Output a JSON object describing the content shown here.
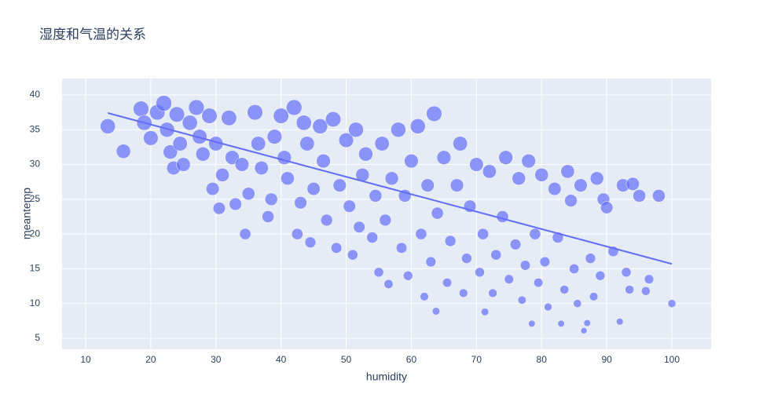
{
  "chart_data": {
    "type": "scatter",
    "title": "湿度和气温的关系",
    "x_label": "humidity",
    "y_label": "meantemp",
    "xlim": [
      6.38,
      106.03
    ],
    "ylim": [
      3.42,
      42.37
    ],
    "xticks": [
      10,
      20,
      30,
      40,
      50,
      60,
      70,
      80,
      90,
      100
    ],
    "yticks": [
      5,
      10,
      15,
      20,
      25,
      30,
      35,
      40
    ],
    "grid": true,
    "series": [
      {
        "type": "scatter",
        "color": "#636efa",
        "x": [
          13.4,
          15.8,
          18.5,
          19,
          20,
          21,
          22,
          22.5,
          23,
          23.5,
          24,
          24.5,
          25,
          26,
          27,
          27.5,
          28,
          29,
          29.5,
          30,
          30.5,
          31,
          32,
          32.5,
          33,
          34,
          34.5,
          35,
          36,
          36.5,
          37,
          38,
          38.5,
          39,
          40,
          40.5,
          41,
          42,
          42.5,
          43,
          43.5,
          44,
          44.5,
          45,
          46,
          46.5,
          47,
          48,
          48.5,
          49,
          50,
          50.5,
          51,
          51.5,
          52,
          52.5,
          53,
          54,
          54.5,
          55,
          55.5,
          56,
          56.5,
          57,
          58,
          58.5,
          59,
          59.5,
          60,
          61,
          61.5,
          62,
          62.5,
          63,
          63.5,
          63.8,
          64,
          65,
          65.5,
          66,
          67,
          67.5,
          68,
          68.5,
          69,
          70,
          70.5,
          71,
          71.3,
          72,
          72.5,
          73,
          74,
          74.5,
          75,
          76,
          76.5,
          77,
          77.5,
          78,
          78.5,
          79,
          79.5,
          80,
          80.5,
          81,
          82,
          82.5,
          83,
          83.5,
          84,
          84.5,
          85,
          85.5,
          86,
          86.5,
          87,
          87.5,
          88,
          88.5,
          89,
          89.5,
          90,
          91,
          92,
          92.5,
          93,
          93.5,
          94,
          95,
          96,
          96.5,
          98,
          100
        ],
        "values": [
          35.5,
          31.9,
          38,
          36,
          33.8,
          37.5,
          38.8,
          35,
          31.8,
          29.5,
          37.2,
          33,
          30,
          36,
          38.2,
          34,
          31.5,
          37,
          26.5,
          33,
          23.7,
          28.5,
          36.7,
          31,
          24.3,
          30,
          20,
          25.8,
          37.5,
          33,
          29.5,
          22.5,
          25,
          34,
          37,
          31,
          28,
          38.2,
          20,
          24.5,
          36,
          33,
          18.8,
          26.5,
          35.5,
          30.5,
          22,
          36.5,
          18,
          27,
          33.5,
          24,
          17,
          35,
          21,
          28.5,
          31.5,
          19.5,
          25.5,
          14.5,
          33,
          22,
          12.8,
          28,
          35,
          18,
          25.5,
          14,
          30.5,
          35.5,
          20,
          11,
          27,
          16,
          37.3,
          8.9,
          23,
          31,
          13,
          19,
          27,
          33,
          11.5,
          16.5,
          24,
          30,
          14.5,
          20,
          8.8,
          29,
          11.5,
          17,
          22.5,
          31,
          13.5,
          18.5,
          28,
          10.5,
          15.5,
          30.5,
          7.1,
          20,
          13,
          28.5,
          16,
          9.5,
          26.5,
          19.5,
          7.1,
          12,
          29,
          24.8,
          15,
          10,
          27,
          6.1,
          7.2,
          16.5,
          11,
          28,
          14,
          25,
          23.8,
          17.5,
          7.4,
          27,
          14.5,
          12,
          27.2,
          25.5,
          11.8,
          13.5,
          25.5,
          10
        ]
      },
      {
        "type": "line",
        "color": "#636efa",
        "x": [
          13.4,
          100
        ],
        "values": [
          37.4,
          15.7
        ]
      }
    ]
  }
}
